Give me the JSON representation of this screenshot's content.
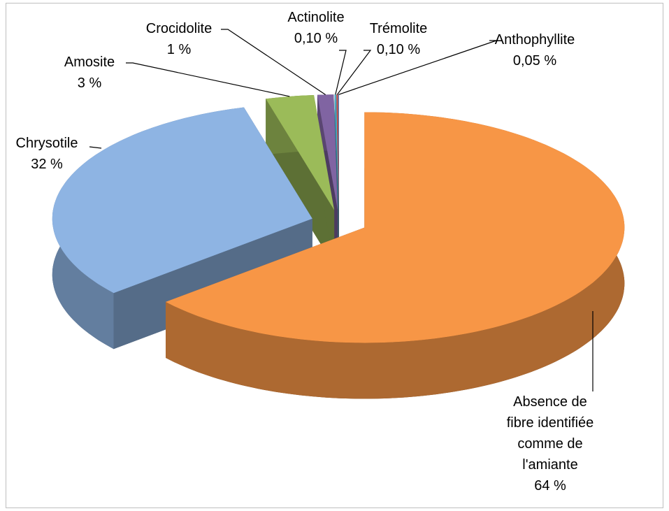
{
  "chart_data": {
    "type": "pie",
    "categories": [
      "Absence de fibre identifiée comme de l'amiante",
      "Chrysotile",
      "Amosite",
      "Crocidolite",
      "Actinolite",
      "Trémolite",
      "Anthophyllite"
    ],
    "values": [
      64,
      32,
      3,
      1,
      0.1,
      0.1,
      0.05
    ],
    "value_labels": [
      "64 %",
      "32 %",
      "3 %",
      "1 %",
      "0,10 %",
      "0,10 %",
      "0,05 %"
    ],
    "colors": [
      "#f79646",
      "#8eb4e3",
      "#9bbb59",
      "#8064a2",
      "#4bacc6",
      "#c0504d",
      "#4f81bd"
    ]
  }
}
